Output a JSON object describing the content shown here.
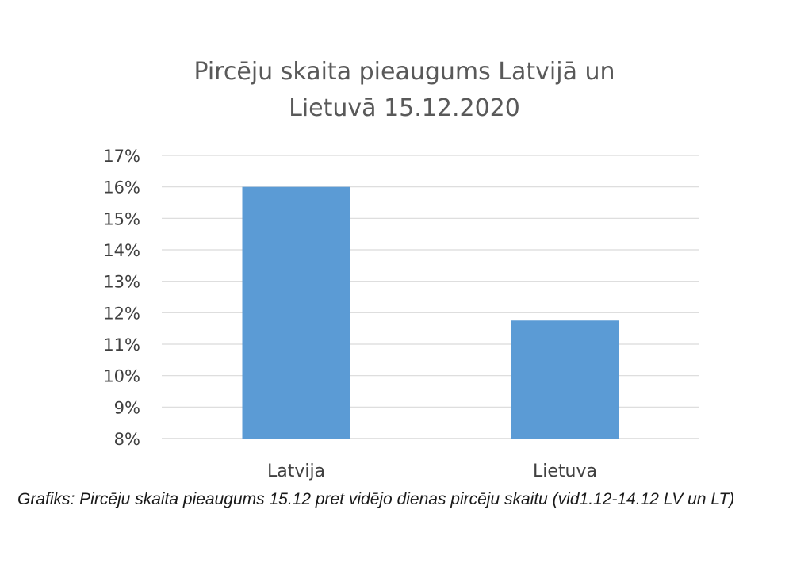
{
  "chart_data": {
    "type": "bar",
    "title_lines": [
      "Pircēju skaita pieaugums Latvijā un",
      "Lietuvā 15.12.2020"
    ],
    "categories": [
      "Latvija",
      "Lietuva"
    ],
    "values": [
      16.0,
      11.75
    ],
    "ylim": [
      8,
      17
    ],
    "yticks": [
      "17%",
      "16%",
      "15%",
      "14%",
      "13%",
      "12%",
      "11%",
      "10%",
      "9%",
      "8%"
    ],
    "ytick_values": [
      17,
      16,
      15,
      14,
      13,
      12,
      11,
      10,
      9,
      8
    ],
    "grid": true,
    "bar_color": "#5b9bd5",
    "grid_color": "#d9d9d9"
  },
  "caption": "Grafiks: Pircēju skaita pieaugums 15.12 pret vidējo dienas pircēju skaitu (vid1.12-14.12 LV un LT)"
}
